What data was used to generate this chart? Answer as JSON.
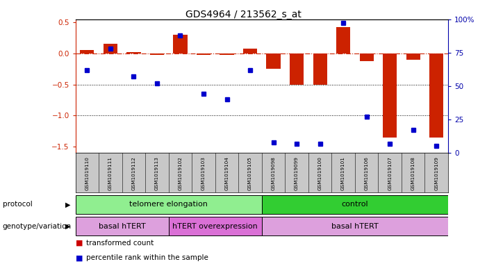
{
  "title": "GDS4964 / 213562_s_at",
  "samples": [
    "GSM1019110",
    "GSM1019111",
    "GSM1019112",
    "GSM1019113",
    "GSM1019102",
    "GSM1019103",
    "GSM1019104",
    "GSM1019105",
    "GSM1019098",
    "GSM1019099",
    "GSM1019100",
    "GSM1019101",
    "GSM1019106",
    "GSM1019107",
    "GSM1019108",
    "GSM1019109"
  ],
  "red_bars": [
    0.05,
    0.15,
    0.02,
    -0.02,
    0.3,
    -0.02,
    -0.03,
    0.08,
    -0.25,
    -0.5,
    -0.5,
    0.42,
    -0.12,
    -1.35,
    -0.1,
    -1.35
  ],
  "blue_dots_pct": [
    62,
    78,
    57,
    52,
    88,
    44,
    40,
    62,
    8,
    7,
    7,
    97,
    27,
    7,
    17,
    5
  ],
  "ylim_left": [
    -1.6,
    0.55
  ],
  "ylim_right": [
    0,
    100
  ],
  "yticks_left": [
    0.5,
    0.0,
    -0.5,
    -1.0,
    -1.5
  ],
  "yticks_right": [
    100,
    75,
    50,
    25,
    0
  ],
  "dotted_lines": [
    -0.5,
    -1.0
  ],
  "protocol_groups": [
    {
      "label": "telomere elongation",
      "start": 0,
      "end": 7,
      "color": "#90ee90"
    },
    {
      "label": "control",
      "start": 8,
      "end": 15,
      "color": "#32cd32"
    }
  ],
  "genotype_groups": [
    {
      "label": "basal hTERT",
      "start": 0,
      "end": 3,
      "color": "#dda0dd"
    },
    {
      "label": "hTERT overexpression",
      "start": 4,
      "end": 7,
      "color": "#da70d6"
    },
    {
      "label": "basal hTERT",
      "start": 8,
      "end": 15,
      "color": "#dda0dd"
    }
  ],
  "legend_items": [
    {
      "color": "#cc0000",
      "label": "transformed count"
    },
    {
      "color": "#0000cc",
      "label": "percentile rank within the sample"
    }
  ],
  "bar_color": "#cc2200",
  "dot_color": "#0000cc",
  "dashed_color": "#cc2200",
  "left_axis_color": "#cc2200",
  "right_axis_color": "#0000aa",
  "sample_box_color": "#c8c8c8"
}
